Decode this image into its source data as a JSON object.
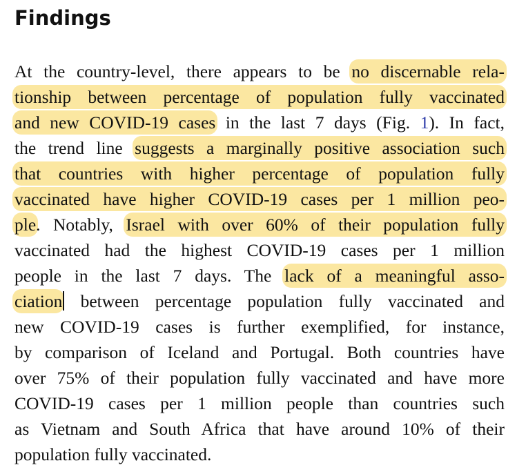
{
  "heading": "Findings",
  "highlight_color": "#fbe7a1",
  "link_color": "#2b3aa8",
  "lines": [
    [
      {
        "t": "At the country-level, there appears to be "
      },
      {
        "t": "no discernable rela-",
        "hl": true
      }
    ],
    [
      {
        "t": "tionship between percentage of population fully vaccinated",
        "hl": true
      }
    ],
    [
      {
        "t": "and new COVID-19 cases",
        "hl": true
      },
      {
        "t": " in the last 7 days (Fig. "
      },
      {
        "t": "1",
        "link": true
      },
      {
        "t": "). In fact,"
      }
    ],
    [
      {
        "t": "the trend line "
      },
      {
        "t": "suggests a marginally positive association such",
        "hl": true
      }
    ],
    [
      {
        "t": "that countries with higher percentage of population fully",
        "hl": true
      }
    ],
    [
      {
        "t": "vaccinated have higher COVID-19 cases per 1 million peo-",
        "hl": true
      }
    ],
    [
      {
        "t": "ple",
        "hl": true
      },
      {
        "t": ". Notably, "
      },
      {
        "t": "Israel with over 60% of their population fully",
        "hl": true
      }
    ],
    [
      {
        "t": "vaccinated had the highest COVID-19 cases per 1 million"
      }
    ],
    [
      {
        "t": "people in the last 7 days. The "
      },
      {
        "t": "lack of a meaningful asso-",
        "hl": true
      }
    ],
    [
      {
        "t": "ciation",
        "hl": true,
        "cursor": true
      },
      {
        "t": " between percentage population fully vaccinated and"
      }
    ],
    [
      {
        "t": "new COVID-19 cases is further exemplified, for instance,"
      }
    ],
    [
      {
        "t": "by comparison of Iceland and Portugal. Both countries have"
      }
    ],
    [
      {
        "t": "over 75% of their population fully vaccinated and have more"
      }
    ],
    [
      {
        "t": "COVID-19 cases per 1 million people than countries such"
      }
    ],
    [
      {
        "t": "as Vietnam and South Africa that have around 10% of their"
      }
    ],
    [
      {
        "t": "population fully vaccinated."
      }
    ]
  ]
}
